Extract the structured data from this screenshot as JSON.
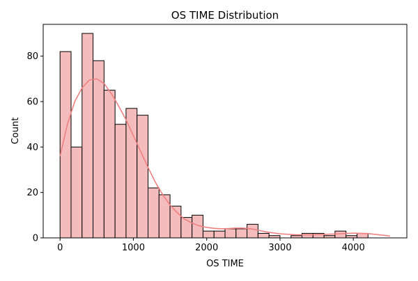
{
  "chart_data": {
    "type": "bar",
    "title": "OS TIME Distribution",
    "xlabel": "OS TIME",
    "ylabel": "Count",
    "xlim": [
      -230,
      4730
    ],
    "ylim": [
      0,
      94
    ],
    "x_ticks": [
      0,
      1000,
      2000,
      3000,
      4000
    ],
    "y_ticks": [
      0,
      20,
      40,
      60,
      80
    ],
    "grid": false,
    "bins": {
      "start": 0,
      "width": 150,
      "counts": [
        82,
        40,
        90,
        78,
        65,
        50,
        57,
        54,
        22,
        19,
        14,
        9,
        10,
        3,
        3,
        4,
        4,
        6,
        2,
        1,
        0,
        1,
        2,
        2,
        1,
        3,
        1,
        2,
        0,
        0
      ]
    },
    "kde": {
      "x": [
        0,
        100,
        200,
        300,
        400,
        500,
        600,
        700,
        800,
        900,
        1000,
        1100,
        1200,
        1300,
        1400,
        1500,
        1600,
        1700,
        1800,
        1900,
        2000,
        2100,
        2200,
        2300,
        2400,
        2500,
        2600,
        2700,
        2800,
        2900,
        3000,
        3200,
        3400,
        3600,
        3800,
        4000,
        4200,
        4400,
        4500
      ],
      "y": [
        36,
        50,
        60,
        66,
        69.5,
        70,
        68,
        63.5,
        58,
        52,
        45,
        38,
        31,
        24.5,
        19,
        14.5,
        11,
        8.2,
        6.5,
        5.3,
        4.6,
        4.2,
        4.0,
        4.1,
        4.3,
        4.3,
        4.0,
        3.4,
        2.7,
        2.2,
        1.8,
        1.4,
        1.3,
        1.5,
        1.8,
        2.1,
        1.9,
        1.2,
        0.8
      ]
    },
    "colors": {
      "bar_fill": "#f4bcbc",
      "bar_edge": "#000000",
      "kde_line": "#f08080"
    }
  }
}
